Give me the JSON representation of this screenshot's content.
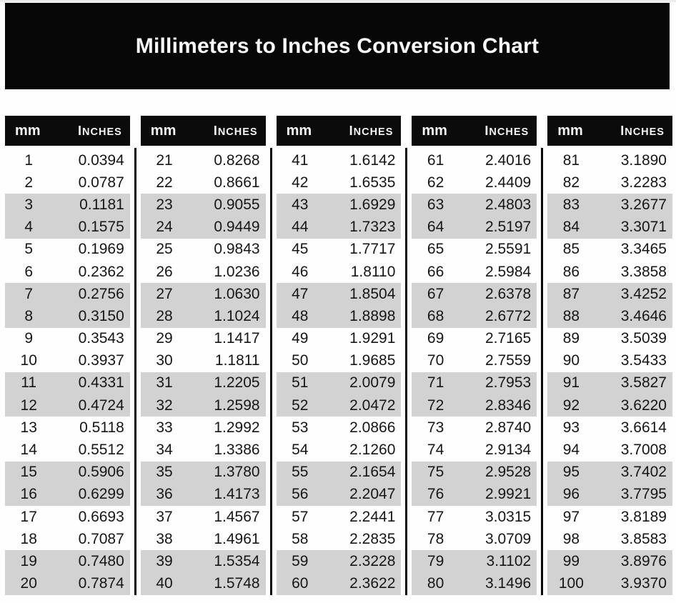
{
  "page": {
    "title": "Millimeters to Inches Conversion Chart"
  },
  "table": {
    "header_labels": {
      "mm": "mm",
      "inches": "Inches"
    }
  },
  "colors": {
    "banner_bg": "#070707",
    "header_bg": "#0b0b0b",
    "row_shade": "#d2d2d2",
    "title_text": "#fafafa",
    "body_text": "#161616"
  },
  "chart_data": {
    "type": "table",
    "title": "Millimeters to Inches Conversion Chart",
    "columns": [
      "mm",
      "Inches"
    ],
    "layout": "5 column groups of 20 rows, rows shaded gray in alternating pairs",
    "column_groups": [
      {
        "mm_range": "1-20",
        "rows": [
          [
            1,
            0.0394
          ],
          [
            2,
            0.0787
          ],
          [
            3,
            0.1181
          ],
          [
            4,
            0.1575
          ],
          [
            5,
            0.1969
          ],
          [
            6,
            0.2362
          ],
          [
            7,
            0.2756
          ],
          [
            8,
            0.315
          ],
          [
            9,
            0.3543
          ],
          [
            10,
            0.3937
          ],
          [
            11,
            0.4331
          ],
          [
            12,
            0.4724
          ],
          [
            13,
            0.5118
          ],
          [
            14,
            0.5512
          ],
          [
            15,
            0.5906
          ],
          [
            16,
            0.6299
          ],
          [
            17,
            0.6693
          ],
          [
            18,
            0.7087
          ],
          [
            19,
            0.748
          ],
          [
            20,
            0.7874
          ]
        ]
      },
      {
        "mm_range": "21-40",
        "rows": [
          [
            21,
            0.8268
          ],
          [
            22,
            0.8661
          ],
          [
            23,
            0.9055
          ],
          [
            24,
            0.9449
          ],
          [
            25,
            0.9843
          ],
          [
            26,
            1.0236
          ],
          [
            27,
            1.063
          ],
          [
            28,
            1.1024
          ],
          [
            29,
            1.1417
          ],
          [
            30,
            1.1811
          ],
          [
            31,
            1.2205
          ],
          [
            32,
            1.2598
          ],
          [
            33,
            1.2992
          ],
          [
            34,
            1.3386
          ],
          [
            35,
            1.378
          ],
          [
            36,
            1.4173
          ],
          [
            37,
            1.4567
          ],
          [
            38,
            1.4961
          ],
          [
            39,
            1.5354
          ],
          [
            40,
            1.5748
          ]
        ]
      },
      {
        "mm_range": "41-60",
        "rows": [
          [
            41,
            1.6142
          ],
          [
            42,
            1.6535
          ],
          [
            43,
            1.6929
          ],
          [
            44,
            1.7323
          ],
          [
            45,
            1.7717
          ],
          [
            46,
            1.811
          ],
          [
            47,
            1.8504
          ],
          [
            48,
            1.8898
          ],
          [
            49,
            1.9291
          ],
          [
            50,
            1.9685
          ],
          [
            51,
            2.0079
          ],
          [
            52,
            2.0472
          ],
          [
            53,
            2.0866
          ],
          [
            54,
            2.126
          ],
          [
            55,
            2.1654
          ],
          [
            56,
            2.2047
          ],
          [
            57,
            2.2441
          ],
          [
            58,
            2.2835
          ],
          [
            59,
            2.3228
          ],
          [
            60,
            2.3622
          ]
        ]
      },
      {
        "mm_range": "61-80",
        "rows": [
          [
            61,
            2.4016
          ],
          [
            62,
            2.4409
          ],
          [
            63,
            2.4803
          ],
          [
            64,
            2.5197
          ],
          [
            65,
            2.5591
          ],
          [
            66,
            2.5984
          ],
          [
            67,
            2.6378
          ],
          [
            68,
            2.6772
          ],
          [
            69,
            2.7165
          ],
          [
            70,
            2.7559
          ],
          [
            71,
            2.7953
          ],
          [
            72,
            2.8346
          ],
          [
            73,
            2.874
          ],
          [
            74,
            2.9134
          ],
          [
            75,
            2.9528
          ],
          [
            76,
            2.9921
          ],
          [
            77,
            3.0315
          ],
          [
            78,
            3.0709
          ],
          [
            79,
            3.1102
          ],
          [
            80,
            3.1496
          ]
        ]
      },
      {
        "mm_range": "81-100",
        "rows": [
          [
            81,
            3.189
          ],
          [
            82,
            3.2283
          ],
          [
            83,
            3.2677
          ],
          [
            84,
            3.3071
          ],
          [
            85,
            3.3465
          ],
          [
            86,
            3.3858
          ],
          [
            87,
            3.4252
          ],
          [
            88,
            3.4646
          ],
          [
            89,
            3.5039
          ],
          [
            90,
            3.5433
          ],
          [
            91,
            3.5827
          ],
          [
            92,
            3.622
          ],
          [
            93,
            3.6614
          ],
          [
            94,
            3.7008
          ],
          [
            95,
            3.7402
          ],
          [
            96,
            3.7795
          ],
          [
            97,
            3.8189
          ],
          [
            98,
            3.8583
          ],
          [
            99,
            3.8976
          ],
          [
            100,
            3.937
          ]
        ]
      }
    ]
  }
}
